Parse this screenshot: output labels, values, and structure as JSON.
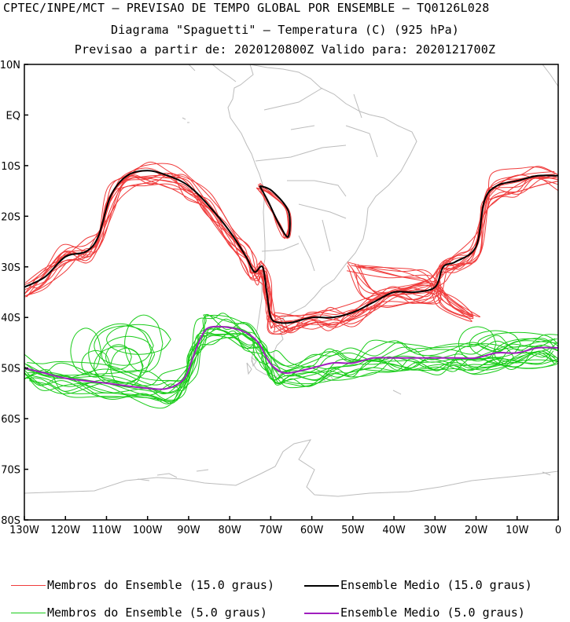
{
  "header": {
    "line1": "CPTEC/INPE/MCT – PREVISAO DE TEMPO GLOBAL POR ENSEMBLE – TQ0126L028",
    "line2": "Diagrama \"Spaguetti\" – Temperatura (C) (925 hPa)",
    "line3": "Previsao a partir de: 2020120800Z  Valido para: 2020121700Z"
  },
  "map": {
    "lon_range": [
      -130,
      0
    ],
    "lat_range": [
      -80,
      10
    ],
    "lat_ticks": [
      "10N",
      "EQ",
      "10S",
      "20S",
      "30S",
      "40S",
      "50S",
      "60S",
      "70S",
      "80S"
    ],
    "lon_ticks": [
      "130W",
      "120W",
      "110W",
      "100W",
      "90W",
      "80W",
      "70W",
      "60W",
      "50W",
      "40W",
      "30W",
      "20W",
      "10W",
      "0"
    ],
    "coast_color": "#bcbcbc"
  },
  "legend": {
    "red_members": "Membros do Ensemble (15.0 graus)",
    "black_mean": "Ensemble Medio (15.0 graus)",
    "green_members": "Membros do Ensemble (5.0 graus)",
    "purple_mean": "Ensemble Medio (5.0 graus)"
  },
  "colors": {
    "red_members": "#f03c3c",
    "black_mean": "#000000",
    "green_members": "#19cc19",
    "purple_mean": "#a01ebe"
  },
  "chart_data": {
    "type": "map-contours",
    "series": [
      {
        "name": "Ensemble Medio (15.0 graus)",
        "points": [
          [
            -130,
            -34
          ],
          [
            -125,
            -32
          ],
          [
            -120,
            -28
          ],
          [
            -115,
            -27
          ],
          [
            -112,
            -24
          ],
          [
            -109,
            -16
          ],
          [
            -105,
            -12
          ],
          [
            -100,
            -11
          ],
          [
            -95,
            -12
          ],
          [
            -90,
            -14
          ],
          [
            -85,
            -18
          ],
          [
            -80,
            -23
          ],
          [
            -76,
            -28
          ],
          [
            -74,
            -31
          ],
          [
            -72,
            -30
          ],
          [
            -71,
            -35
          ],
          [
            -70,
            -40
          ],
          [
            -68,
            -41
          ],
          [
            -65,
            -41
          ],
          [
            -60,
            -40
          ],
          [
            -55,
            -40
          ],
          [
            -50,
            -39
          ],
          [
            -45,
            -37
          ],
          [
            -40,
            -35
          ],
          [
            -35,
            -35
          ],
          [
            -30,
            -34
          ],
          [
            -28,
            -30
          ],
          [
            -25,
            -29
          ],
          [
            -20,
            -26
          ],
          [
            -18,
            -17
          ],
          [
            -15,
            -14
          ],
          [
            -10,
            -13
          ],
          [
            -5,
            -12
          ],
          [
            0,
            -12
          ]
        ]
      },
      {
        "name": "Ensemble Medio (5.0 graus)",
        "points": [
          [
            -130,
            -50
          ],
          [
            -125,
            -51
          ],
          [
            -120,
            -52
          ],
          [
            -110,
            -53
          ],
          [
            -100,
            -54
          ],
          [
            -95,
            -54
          ],
          [
            -91,
            -52
          ],
          [
            -89,
            -48
          ],
          [
            -87,
            -44
          ],
          [
            -85,
            -42
          ],
          [
            -80,
            -42
          ],
          [
            -76,
            -43
          ],
          [
            -73,
            -45
          ],
          [
            -71,
            -48
          ],
          [
            -69,
            -50
          ],
          [
            -66,
            -51
          ],
          [
            -60,
            -50
          ],
          [
            -55,
            -49
          ],
          [
            -50,
            -49
          ],
          [
            -45,
            -48
          ],
          [
            -40,
            -48
          ],
          [
            -35,
            -48
          ],
          [
            -30,
            -48
          ],
          [
            -25,
            -48
          ],
          [
            -20,
            -48
          ],
          [
            -15,
            -47
          ],
          [
            -10,
            -47
          ],
          [
            -5,
            -46
          ],
          [
            0,
            -46
          ]
        ]
      }
    ]
  }
}
